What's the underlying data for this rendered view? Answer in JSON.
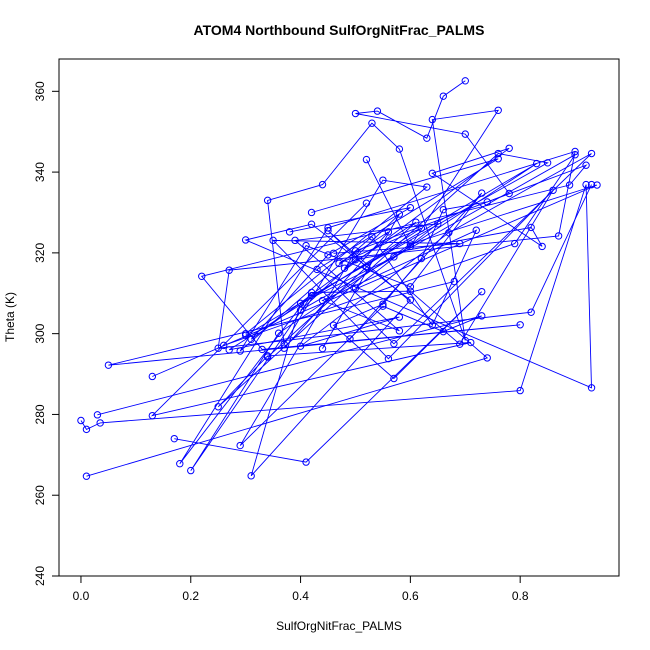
{
  "chart_data": {
    "type": "line",
    "title": "ATOM4 Northbound SulfOrgNitFrac_PALMS",
    "xlabel": "SulfOrgNitFrac_PALMS",
    "ylabel": "Theta (K)",
    "xlim": [
      -0.04,
      0.98
    ],
    "ylim": [
      240,
      368
    ],
    "xticks": [
      0.0,
      0.2,
      0.4,
      0.6,
      0.8
    ],
    "xtick_labels": [
      "0.0",
      "0.2",
      "0.4",
      "0.6",
      "0.8"
    ],
    "yticks": [
      240,
      260,
      280,
      300,
      320,
      340,
      360
    ],
    "ytick_labels": [
      "240",
      "260",
      "280",
      "300",
      "320",
      "340",
      "360"
    ],
    "grid": false,
    "markers": "open-circle",
    "color": "#0000ff",
    "series": [
      {
        "x": [
          0.0,
          0.01,
          0.035,
          0.8,
          0.92,
          0.93,
          0.3,
          0.42,
          0.6,
          0.31,
          0.4,
          0.57,
          0.83,
          0.3
        ],
        "y": [
          278.5,
          276.3,
          277.9,
          285.9,
          336.9,
          286.6,
          323.2,
          327.1,
          308.3,
          264.8,
          307.5,
          319.0,
          342.1,
          299.6
        ]
      },
      {
        "x": [
          0.01,
          0.74,
          0.6,
          0.42,
          0.18,
          0.45,
          0.9,
          0.87,
          0.27,
          0.25,
          0.82,
          0.93
        ],
        "y": [
          264.7,
          294.0,
          310.5,
          310.2,
          267.8,
          326.2,
          345.1,
          324.2,
          315.7,
          296.4,
          305.3,
          336.9
        ]
      },
      {
        "x": [
          0.03,
          0.73,
          0.66,
          0.55,
          0.29,
          0.5,
          0.92,
          0.89,
          0.22,
          0.33,
          0.8,
          0.05,
          0.68
        ],
        "y": [
          279.9,
          304.4,
          300.5,
          306.8,
          272.3,
          320.5,
          341.7,
          336.8,
          314.2,
          296.1,
          302.2,
          292.2,
          312.9
        ]
      },
      {
        "x": [
          0.13,
          0.94,
          0.6,
          0.36,
          0.2,
          0.42,
          0.85,
          0.76,
          0.25,
          0.34,
          0.71,
          0.13,
          0.52
        ],
        "y": [
          289.4,
          336.8,
          322.2,
          300.1,
          266.1,
          309.4,
          342.3,
          344.6,
          281.9,
          294.5,
          297.8,
          279.7,
          332.3
        ]
      },
      {
        "x": [
          0.17,
          0.41,
          0.73,
          0.57,
          0.46,
          0.55,
          0.62,
          0.66,
          0.74,
          0.78,
          0.7,
          0.5,
          0.54,
          0.63,
          0.66,
          0.7
        ],
        "y": [
          274.0,
          268.2,
          310.4,
          288.9,
          302.1,
          307.3,
          318.6,
          330.7,
          332.6,
          334.7,
          349.4,
          354.5,
          355.1,
          348.4,
          358.8,
          362.6
        ]
      },
      {
        "x": [
          0.3,
          0.63,
          0.55,
          0.37,
          0.34,
          0.44,
          0.53,
          0.58,
          0.7,
          0.64,
          0.76,
          0.6,
          0.52
        ],
        "y": [
          300.0,
          336.3,
          338.0,
          297.4,
          333.0,
          336.9,
          352.1,
          345.7,
          298.3,
          353.0,
          355.3,
          321.6,
          343.1
        ]
      },
      {
        "x": [
          0.26,
          0.79,
          0.9,
          0.4,
          0.5,
          0.82,
          0.84,
          0.64,
          0.78,
          0.31,
          0.45,
          0.6,
          0.38
        ],
        "y": [
          297.1,
          322.3,
          344.3,
          305.8,
          318.3,
          326.3,
          321.6,
          339.7,
          345.9,
          298.6,
          319.5,
          331.2,
          325.2
        ]
      },
      {
        "x": [
          0.37,
          0.56,
          0.47,
          0.62,
          0.27,
          0.58,
          0.4,
          0.67,
          0.93,
          0.57,
          0.43,
          0.76,
          0.42
        ],
        "y": [
          296.4,
          325.2,
          317.4,
          326.1,
          296.0,
          304.1,
          296.9,
          325.0,
          344.6,
          297.5,
          315.9,
          343.3,
          330.0
        ]
      },
      {
        "x": [
          0.44,
          0.58,
          0.48,
          0.61,
          0.34,
          0.52,
          0.45,
          0.69,
          0.86,
          0.56,
          0.35,
          0.69,
          0.46
        ],
        "y": [
          296.3,
          329.6,
          316.2,
          327.6,
          294.2,
          316.5,
          325.5,
          297.4,
          335.5,
          293.8,
          323.1,
          322.3,
          319.9
        ]
      },
      {
        "x": [
          0.49,
          0.73,
          0.6,
          0.41,
          0.29,
          0.53,
          0.64,
          0.72,
          0.44,
          0.58,
          0.39,
          0.65,
          0.5
        ],
        "y": [
          298.7,
          334.8,
          311.6,
          321.8,
          295.7,
          324.0,
          302.1,
          325.6,
          308.2,
          300.7,
          323.1,
          327.2,
          311.3
        ]
      }
    ]
  }
}
